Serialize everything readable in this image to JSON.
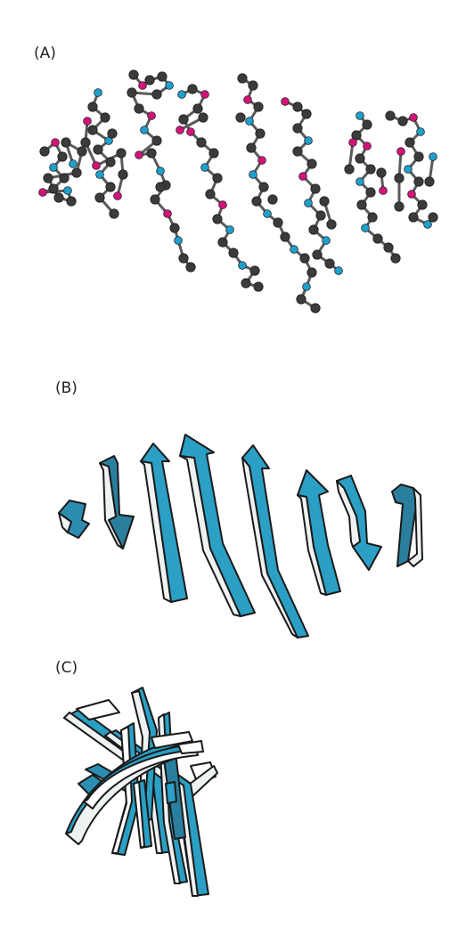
{
  "panels": {
    "a": {
      "label": "(A)"
    },
    "b": {
      "label": "(B)"
    },
    "c": {
      "label": "(C)"
    }
  },
  "colors": {
    "carbon": "#3b3b3b",
    "nitrogen": "#1f9fcc",
    "oxygen": "#d4137a",
    "sheet": "#2b9fc4",
    "sheet_dark": "#1d6f8e",
    "sheet_edge": "#eef2f3",
    "outline": "#1a1a1a"
  }
}
